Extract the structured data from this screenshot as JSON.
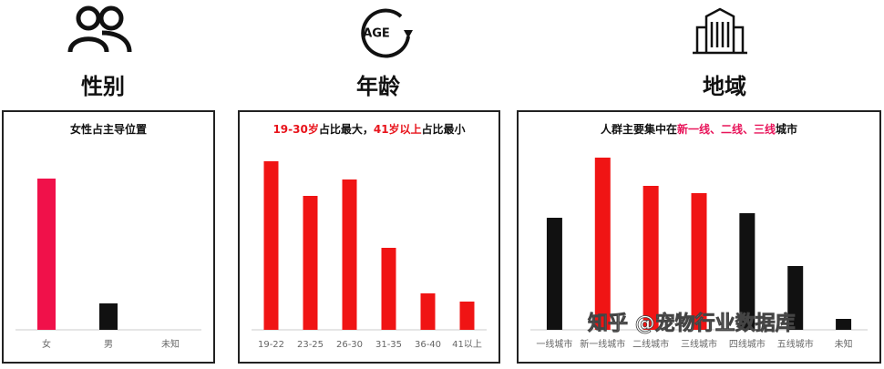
{
  "headers": [
    {
      "label": "性别"
    },
    {
      "label": "年龄",
      "icon_text": "AGE"
    },
    {
      "label": "地域"
    }
  ],
  "watermark": "知乎 @宠物行业数据库",
  "chart_data": [
    {
      "type": "bar",
      "title": [
        "女性占主导位置"
      ],
      "title_colors": [
        "#111111"
      ],
      "categories": [
        "女",
        "男",
        "未知"
      ],
      "values": [
        166,
        29,
        0
      ],
      "colors": [
        "#f0114a",
        "#111111",
        "#111111"
      ],
      "ylim": [
        0,
        210
      ]
    },
    {
      "type": "bar",
      "title": [
        "19-30岁",
        "占比最大，",
        "41岁以上",
        "占比最小"
      ],
      "title_colors": [
        "#e8141c",
        "#111111",
        "#e8141c",
        "#111111"
      ],
      "categories": [
        "19-22",
        "23-25",
        "26-30",
        "31-35",
        "36-40",
        "41以上"
      ],
      "values": [
        185,
        147,
        165,
        90,
        40,
        31
      ],
      "colors": [
        "#f01414",
        "#f01414",
        "#f01414",
        "#f01414",
        "#f01414",
        "#f01414"
      ],
      "ylim": [
        0,
        210
      ]
    },
    {
      "type": "bar",
      "title": [
        "人群主要集中在",
        "新一线、二线、三线",
        "城市"
      ],
      "title_colors": [
        "#111111",
        "#e8145a",
        "#111111"
      ],
      "categories": [
        "一线城市",
        "新一线城市",
        "二线城市",
        "三线城市",
        "四线城市",
        "五线城市",
        "未知"
      ],
      "values": [
        123,
        189,
        158,
        150,
        128,
        70,
        12
      ],
      "colors": [
        "#111111",
        "#f01414",
        "#f01414",
        "#f01414",
        "#111111",
        "#111111",
        "#111111"
      ],
      "ylim": [
        0,
        210
      ]
    }
  ]
}
